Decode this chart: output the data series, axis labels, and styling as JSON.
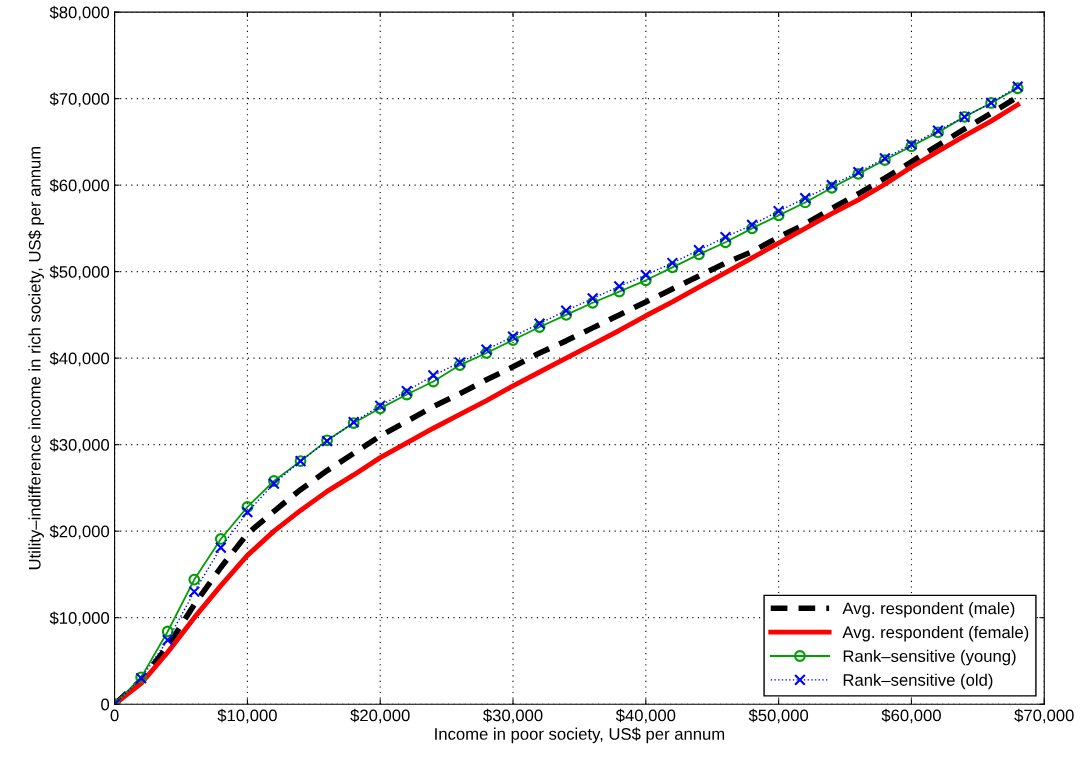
{
  "chart_data": {
    "type": "line",
    "xlabel": "Income in poor society, US$ per annum",
    "ylabel": "Utility–indifference income in rich society, US$ per annum",
    "x": [
      0,
      2000,
      4000,
      6000,
      8000,
      10000,
      12000,
      14000,
      16000,
      18000,
      20000,
      22000,
      24000,
      26000,
      28000,
      30000,
      32000,
      34000,
      36000,
      38000,
      40000,
      42000,
      44000,
      46000,
      48000,
      50000,
      52000,
      54000,
      56000,
      58000,
      60000,
      62000,
      64000,
      66000,
      68000
    ],
    "series": [
      {
        "name": "Avg. respondent (male)",
        "color": "#000000",
        "line_style": "dashed",
        "marker": "none",
        "values": [
          0,
          2800,
          6700,
          11500,
          15800,
          19700,
          22300,
          24800,
          27000,
          29000,
          31000,
          32700,
          34400,
          35900,
          37500,
          39000,
          40600,
          42000,
          43500,
          45000,
          46500,
          48000,
          49500,
          51000,
          52300,
          54000,
          55500,
          57300,
          59000,
          60800,
          62700,
          64600,
          66500,
          68300,
          70200
        ]
      },
      {
        "name": "Avg. respondent (female)",
        "color": "#ff0000",
        "line_style": "solid",
        "marker": "none",
        "values": [
          0,
          2400,
          6000,
          10000,
          13700,
          17200,
          20000,
          22400,
          24600,
          26500,
          28500,
          30200,
          31900,
          33500,
          35100,
          36800,
          38400,
          40000,
          41600,
          43200,
          44900,
          46500,
          48200,
          49900,
          51600,
          53300,
          55000,
          56700,
          58300,
          60100,
          62100,
          63900,
          65700,
          67400,
          69300
        ]
      },
      {
        "name": "Rank–sensitive (young)",
        "color": "#00a000",
        "line_style": "solid",
        "marker": "circle",
        "values": [
          0,
          3100,
          8400,
          14400,
          19100,
          22800,
          25800,
          28100,
          30500,
          32500,
          34200,
          35800,
          37300,
          39200,
          40600,
          42100,
          43600,
          45000,
          46400,
          47700,
          49000,
          50500,
          52000,
          53400,
          55000,
          56500,
          58000,
          59700,
          61300,
          62900,
          64500,
          66100,
          67900,
          69500,
          71200
        ]
      },
      {
        "name": "Rank–sensitive (old)",
        "color": "#0000ff",
        "line_style": "dotted",
        "marker": "cross",
        "values": [
          0,
          3000,
          7400,
          13000,
          18100,
          22200,
          25500,
          28100,
          30400,
          32600,
          34500,
          36200,
          38000,
          39500,
          41000,
          42500,
          44000,
          45500,
          46900,
          48300,
          49600,
          51000,
          52500,
          54000,
          55400,
          57000,
          58500,
          60000,
          61500,
          63100,
          64700,
          66300,
          67900,
          69500,
          71400
        ]
      }
    ],
    "xlim": [
      0,
      70000
    ],
    "xticks": [
      {
        "value": 0,
        "label": "0"
      },
      {
        "value": 10000,
        "label": "$10,000"
      },
      {
        "value": 20000,
        "label": "$20,000"
      },
      {
        "value": 30000,
        "label": "$30,000"
      },
      {
        "value": 40000,
        "label": "$40,000"
      },
      {
        "value": 50000,
        "label": "$50,000"
      },
      {
        "value": 60000,
        "label": "$60,000"
      },
      {
        "value": 70000,
        "label": "$70,000"
      }
    ],
    "ylim": [
      0,
      80000
    ],
    "yticks": [
      {
        "value": 0,
        "label": "0"
      },
      {
        "value": 10000,
        "label": "$10,000"
      },
      {
        "value": 20000,
        "label": "$20,000"
      },
      {
        "value": 30000,
        "label": "$30,000"
      },
      {
        "value": 40000,
        "label": "$40,000"
      },
      {
        "value": 50000,
        "label": "$50,000"
      },
      {
        "value": 60000,
        "label": "$60,000"
      },
      {
        "value": 70000,
        "label": "$70,000"
      },
      {
        "value": 80000,
        "label": "$80,000"
      }
    ],
    "grid": true,
    "legend": "bottom right"
  }
}
